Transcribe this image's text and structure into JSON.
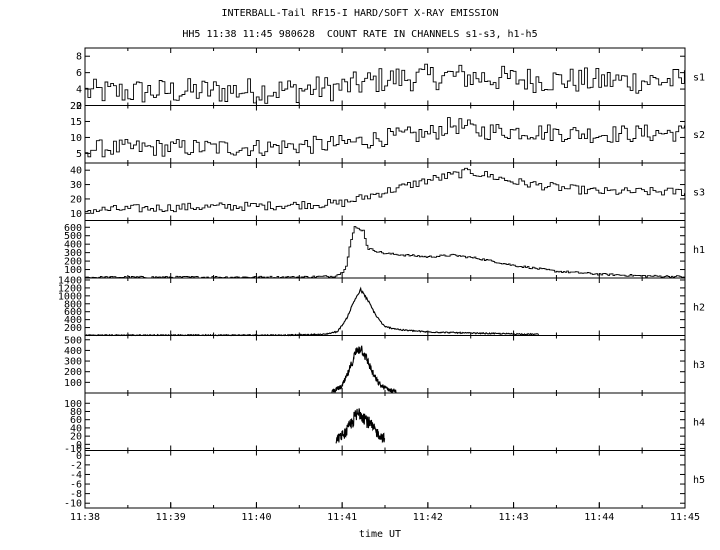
{
  "title_line1": "INTERBALL-Tail RF15-I HARD/SOFT X-RAY EMISSION",
  "title_line2": "HH5 11:38 11:45 980628  COUNT RATE IN CHANNELS s1-s3, h1-h5",
  "xlabel": "time UT",
  "chart_data": {
    "type": "line",
    "title": "INTERBALL-Tail RF15-I HARD/SOFT X-RAY EMISSION",
    "subtitle": "HH5 11:38 11:45 980628  COUNT RATE IN CHANNELS s1-s3, h1-h5",
    "xlabel": "time UT",
    "x_ticks": [
      "11:38",
      "11:39",
      "11:40",
      "11:41",
      "11:42",
      "11:43",
      "11:44",
      "11:45"
    ],
    "xlim_minutes": [
      0,
      7
    ],
    "x_unit_note": "x values are minutes after 11:38 UT",
    "grid": false,
    "legend": "none",
    "series": [
      {
        "name": "s1",
        "style": "step",
        "ylim": [
          2,
          9
        ],
        "yticks": [
          2,
          4,
          6,
          8
        ],
        "profile": [
          [
            0,
            3.6
          ],
          [
            2.5,
            3.9
          ],
          [
            3.0,
            4.2
          ],
          [
            3.5,
            5.2
          ],
          [
            4.3,
            5.6
          ],
          [
            5.0,
            5.2
          ],
          [
            6.0,
            5.0
          ],
          [
            7,
            5.0
          ]
        ],
        "noise": 1.6,
        "xstart": 0,
        "xend": 7,
        "step_min": 0.0333
      },
      {
        "name": "s2",
        "style": "step",
        "ylim": [
          2,
          20
        ],
        "yticks": [
          5,
          10,
          15,
          20
        ],
        "profile": [
          [
            0,
            6.5
          ],
          [
            1.0,
            6.8
          ],
          [
            2.0,
            6.8
          ],
          [
            3.0,
            8.0
          ],
          [
            3.5,
            10.0
          ],
          [
            4.0,
            11.0
          ],
          [
            4.3,
            14.0
          ],
          [
            4.6,
            12.0
          ],
          [
            5.0,
            12.0
          ],
          [
            6.0,
            11.0
          ],
          [
            7,
            11.5
          ]
        ],
        "noise": 2.8,
        "xstart": 0,
        "xend": 7,
        "step_min": 0.0333
      },
      {
        "name": "s3",
        "style": "step",
        "ylim": [
          5,
          45
        ],
        "yticks": [
          10,
          20,
          30,
          40
        ],
        "profile": [
          [
            0,
            12
          ],
          [
            1.0,
            14
          ],
          [
            2.0,
            15
          ],
          [
            3.0,
            17
          ],
          [
            3.5,
            25
          ],
          [
            4.0,
            33
          ],
          [
            4.5,
            39
          ],
          [
            4.8,
            35
          ],
          [
            5.0,
            32
          ],
          [
            5.5,
            28
          ],
          [
            6.0,
            25
          ],
          [
            7,
            25
          ]
        ],
        "noise": 3.0,
        "xstart": 0,
        "xend": 7,
        "step_min": 0.0333
      },
      {
        "name": "h1",
        "style": "step",
        "ylim": [
          0,
          680
        ],
        "yticks": [
          100,
          200,
          300,
          400,
          500,
          600
        ],
        "profile": [
          [
            0,
            8
          ],
          [
            2.5,
            10
          ],
          [
            2.9,
            20
          ],
          [
            3.0,
            60
          ],
          [
            3.05,
            150
          ],
          [
            3.1,
            420
          ],
          [
            3.15,
            600
          ],
          [
            3.25,
            560
          ],
          [
            3.3,
            350
          ],
          [
            3.5,
            290
          ],
          [
            4.0,
            250
          ],
          [
            4.3,
            270
          ],
          [
            4.6,
            230
          ],
          [
            5.0,
            150
          ],
          [
            5.5,
            80
          ],
          [
            6.0,
            45
          ],
          [
            6.5,
            25
          ],
          [
            7,
            15
          ]
        ],
        "noise": 12,
        "xstart": 0,
        "xend": 7,
        "step_min": 0.02
      },
      {
        "name": "h2",
        "style": "noisy",
        "ylim": [
          0,
          1450
        ],
        "yticks": [
          200,
          400,
          600,
          800,
          1000,
          1200,
          1400
        ],
        "profile": [
          [
            0,
            8
          ],
          [
            2.4,
            10
          ],
          [
            2.8,
            30
          ],
          [
            2.95,
            100
          ],
          [
            3.05,
            400
          ],
          [
            3.15,
            900
          ],
          [
            3.22,
            1150
          ],
          [
            3.3,
            900
          ],
          [
            3.4,
            500
          ],
          [
            3.5,
            220
          ],
          [
            3.7,
            140
          ],
          [
            4.0,
            90
          ],
          [
            4.5,
            60
          ],
          [
            5.0,
            40
          ],
          [
            5.3,
            30
          ]
        ],
        "noise": 35,
        "xstart": 0,
        "xend": 5.3,
        "step_min": 0.008
      },
      {
        "name": "h3",
        "style": "noisy",
        "ylim": [
          0,
          540
        ],
        "yticks": [
          100,
          200,
          300,
          400,
          500
        ],
        "profile": [
          [
            2.88,
            15
          ],
          [
            3.0,
            60
          ],
          [
            3.08,
            200
          ],
          [
            3.16,
            380
          ],
          [
            3.22,
            430
          ],
          [
            3.3,
            300
          ],
          [
            3.38,
            150
          ],
          [
            3.45,
            70
          ],
          [
            3.55,
            30
          ],
          [
            3.63,
            15
          ]
        ],
        "noise": 45,
        "xstart": 2.88,
        "xend": 3.63,
        "step_min": 0.004
      },
      {
        "name": "h4",
        "style": "noisy",
        "ylim": [
          -15,
          125
        ],
        "yticks": [
          -10,
          0,
          20,
          40,
          60,
          80,
          100
        ],
        "profile": [
          [
            2.93,
            10
          ],
          [
            3.05,
            30
          ],
          [
            3.15,
            65
          ],
          [
            3.22,
            80
          ],
          [
            3.3,
            55
          ],
          [
            3.38,
            35
          ],
          [
            3.45,
            20
          ],
          [
            3.5,
            15
          ]
        ],
        "noise": 22,
        "xstart": 2.93,
        "xend": 3.5,
        "step_min": 0.004
      },
      {
        "name": "h5",
        "style": "none",
        "ylim": [
          -11,
          1
        ],
        "yticks": [
          -10,
          -8,
          -6,
          -4,
          -2,
          0
        ],
        "profile": [],
        "noise": 0,
        "xstart": 0,
        "xend": 0,
        "step_min": 0.02
      }
    ]
  }
}
